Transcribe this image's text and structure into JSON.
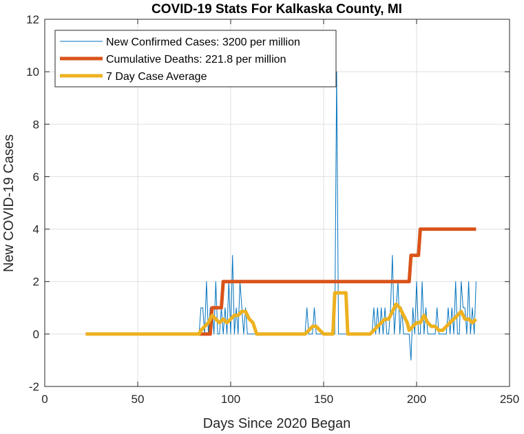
{
  "chart_data": {
    "type": "line",
    "title": "COVID-19 Stats For Kalkaska County, MI",
    "xlabel": "Days Since 2020 Began",
    "ylabel": "New COVID-19 Cases",
    "xlim": [
      0,
      250
    ],
    "ylim": [
      -2,
      12
    ],
    "xticks": [
      0,
      50,
      100,
      150,
      200,
      250
    ],
    "yticks": [
      -2,
      0,
      2,
      4,
      6,
      8,
      10,
      12
    ],
    "grid": true,
    "legend_position": "top-left",
    "series": [
      {
        "name": "New Confirmed Cases: 3200 per million",
        "color": "#0072bd",
        "width": 1,
        "x": [
          22,
          83,
          84,
          85,
          86,
          87,
          88,
          89,
          90,
          91,
          92,
          93,
          94,
          95,
          96,
          97,
          98,
          99,
          100,
          101,
          102,
          103,
          104,
          105,
          106,
          107,
          108,
          109,
          110,
          111,
          112,
          113,
          140,
          141,
          142,
          143,
          144,
          145,
          146,
          147,
          148,
          149,
          150,
          155,
          156,
          157,
          158,
          159,
          160,
          161,
          162,
          163,
          175,
          176,
          177,
          178,
          179,
          180,
          181,
          182,
          183,
          184,
          185,
          186,
          187,
          188,
          189,
          190,
          191,
          192,
          193,
          194,
          195,
          196,
          197,
          198,
          199,
          200,
          201,
          202,
          203,
          204,
          205,
          206,
          207,
          208,
          209,
          210,
          211,
          212,
          213,
          214,
          215,
          216,
          217,
          218,
          219,
          220,
          221,
          222,
          223,
          224,
          225,
          226,
          227,
          228,
          229,
          230,
          231,
          232
        ],
        "y": [
          0,
          0,
          1,
          1,
          0,
          2,
          0,
          1,
          1,
          0,
          2,
          0,
          0,
          1,
          0,
          1,
          0,
          2,
          0,
          3,
          0,
          1,
          0,
          2,
          1,
          0,
          1,
          0,
          0,
          0,
          0,
          0,
          0,
          1,
          0,
          0,
          0,
          1,
          0,
          0,
          0,
          0,
          0,
          0,
          0,
          10,
          0,
          0,
          0,
          0,
          0,
          0,
          0,
          0,
          1,
          0,
          1,
          0,
          1,
          0,
          1,
          0,
          0,
          1,
          3,
          0,
          1,
          2,
          0,
          1,
          0,
          0,
          0,
          0,
          -1,
          1,
          0,
          2,
          0,
          0,
          2,
          0,
          1,
          0,
          0,
          0,
          0,
          0,
          1,
          0,
          0,
          0,
          0,
          0,
          1,
          0,
          1,
          0,
          2,
          0,
          0,
          2,
          1,
          1,
          0,
          2,
          0,
          1,
          0,
          2
        ]
      },
      {
        "name": "Cumulative Deaths: 221.8 per million",
        "color": "#d95319",
        "width": 5,
        "x": [
          83,
          89,
          90,
          95,
          96,
          196,
          197,
          201,
          202,
          232
        ],
        "y": [
          0,
          0,
          1,
          1,
          2,
          2,
          3,
          3,
          4,
          4
        ]
      },
      {
        "name": "7 Day Case Average",
        "color": "#edb120",
        "width": 5,
        "x": [
          22,
          83,
          84,
          86,
          88,
          90,
          92,
          94,
          96,
          98,
          100,
          102,
          104,
          106,
          108,
          110,
          112,
          114,
          140,
          142,
          144,
          146,
          148,
          150,
          155,
          156,
          157,
          160,
          162,
          163,
          175,
          177,
          179,
          181,
          183,
          185,
          187,
          189,
          191,
          193,
          195,
          196,
          198,
          200,
          202,
          204,
          206,
          208,
          210,
          212,
          214,
          216,
          218,
          220,
          222,
          224,
          226,
          228,
          230,
          232
        ],
        "y": [
          0,
          0,
          0.14,
          0.29,
          0.43,
          0.71,
          0.57,
          0.43,
          0.57,
          0.43,
          0.57,
          0.71,
          0.71,
          0.86,
          0.86,
          0.57,
          0.43,
          0,
          0,
          0.14,
          0.29,
          0.29,
          0.14,
          0,
          0,
          1.57,
          1.57,
          1.57,
          1.57,
          0,
          0,
          0.14,
          0.29,
          0.43,
          0.57,
          0.57,
          0.86,
          1.14,
          1.0,
          0.71,
          0.43,
          0.14,
          0.29,
          0.43,
          0.43,
          0.71,
          0.43,
          0.29,
          0.29,
          0.14,
          0.14,
          0.29,
          0.43,
          0.57,
          0.71,
          0.86,
          0.57,
          0.57,
          0.43,
          0.57
        ]
      }
    ]
  }
}
